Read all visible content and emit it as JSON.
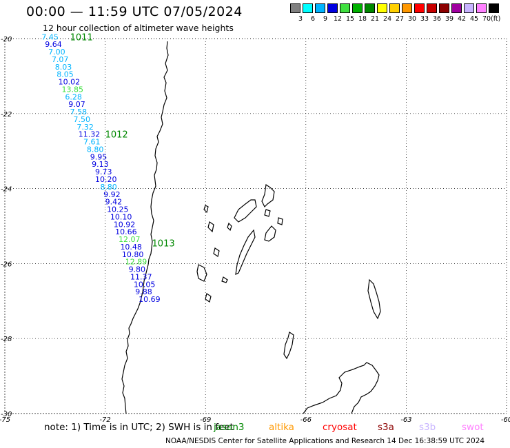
{
  "header": {
    "title": "00:00 — 11:59 UTC 07/05/2024",
    "subtitle": "12 hour collection of altimeter wave heights"
  },
  "legend": {
    "unit": "(ft)",
    "bins": [
      {
        "label": "3",
        "color": "#808080"
      },
      {
        "label": "6",
        "color": "#00ffff"
      },
      {
        "label": "9",
        "color": "#00b4ff"
      },
      {
        "label": "12",
        "color": "#0000e0"
      },
      {
        "label": "15",
        "color": "#40e040"
      },
      {
        "label": "18",
        "color": "#00b000"
      },
      {
        "label": "21",
        "color": "#008800"
      },
      {
        "label": "24",
        "color": "#ffff00"
      },
      {
        "label": "27",
        "color": "#ffd000"
      },
      {
        "label": "30",
        "color": "#ff9800"
      },
      {
        "label": "33",
        "color": "#ff0000"
      },
      {
        "label": "36",
        "color": "#c80000"
      },
      {
        "label": "39",
        "color": "#8c0000"
      },
      {
        "label": "42",
        "color": "#a000a0"
      },
      {
        "label": "45",
        "color": "#c8b4ff"
      },
      {
        "label": "70",
        "color": "#ff80ff"
      },
      {
        "label": "",
        "color": "#000000"
      }
    ]
  },
  "map": {
    "lat_labels": [
      "-20",
      "-22",
      "-24",
      "-26",
      "-28",
      "-30"
    ],
    "lon_labels": [
      "-75",
      "-72",
      "-69",
      "-66",
      "-63",
      "-60"
    ],
    "pass_labels": [
      {
        "text": "1011",
        "lon": -73.05,
        "lat": -19.95
      },
      {
        "text": "1012",
        "lon": -72.0,
        "lat": -22.55
      },
      {
        "text": "1013",
        "lon": -70.6,
        "lat": -25.45
      }
    ],
    "observations": [
      {
        "value": "7.45",
        "lon": -73.9,
        "lat": -19.95,
        "color": "#00b4ff"
      },
      {
        "value": "9.64",
        "lon": -73.8,
        "lat": -20.15,
        "color": "#0000e0"
      },
      {
        "value": "7.00",
        "lon": -73.7,
        "lat": -20.35,
        "color": "#00b4ff"
      },
      {
        "value": "7.07",
        "lon": -73.6,
        "lat": -20.55,
        "color": "#00b4ff"
      },
      {
        "value": "8.03",
        "lon": -73.5,
        "lat": -20.75,
        "color": "#00b4ff"
      },
      {
        "value": "8.05",
        "lon": -73.45,
        "lat": -20.95,
        "color": "#00b4ff"
      },
      {
        "value": "10.02",
        "lon": -73.4,
        "lat": -21.15,
        "color": "#0000e0"
      },
      {
        "value": "13.85",
        "lon": -73.3,
        "lat": -21.35,
        "color": "#40e040"
      },
      {
        "value": "6.28",
        "lon": -73.2,
        "lat": -21.55,
        "color": "#00b4ff"
      },
      {
        "value": "9.07",
        "lon": -73.1,
        "lat": -21.75,
        "color": "#0000e0"
      },
      {
        "value": "7.58",
        "lon": -73.05,
        "lat": -21.95,
        "color": "#00b4ff"
      },
      {
        "value": "7.50",
        "lon": -72.95,
        "lat": -22.15,
        "color": "#00b4ff"
      },
      {
        "value": "7.32",
        "lon": -72.85,
        "lat": -22.35,
        "color": "#00b4ff"
      },
      {
        "value": "11.32",
        "lon": -72.8,
        "lat": -22.55,
        "color": "#0000e0"
      },
      {
        "value": "7.61",
        "lon": -72.65,
        "lat": -22.75,
        "color": "#00b4ff"
      },
      {
        "value": "8.80",
        "lon": -72.55,
        "lat": -22.95,
        "color": "#00b4ff"
      },
      {
        "value": "9.95",
        "lon": -72.45,
        "lat": -23.15,
        "color": "#0000e0"
      },
      {
        "value": "9.13",
        "lon": -72.4,
        "lat": -23.35,
        "color": "#0000e0"
      },
      {
        "value": "9.73",
        "lon": -72.3,
        "lat": -23.55,
        "color": "#0000e0"
      },
      {
        "value": "10.20",
        "lon": -72.3,
        "lat": -23.75,
        "color": "#0000e0"
      },
      {
        "value": "8.80",
        "lon": -72.15,
        "lat": -23.95,
        "color": "#00b4ff"
      },
      {
        "value": "9.92",
        "lon": -72.05,
        "lat": -24.15,
        "color": "#0000e0"
      },
      {
        "value": "9.42",
        "lon": -72.0,
        "lat": -24.35,
        "color": "#0000e0"
      },
      {
        "value": "10.25",
        "lon": -71.95,
        "lat": -24.55,
        "color": "#0000e0"
      },
      {
        "value": "10.10",
        "lon": -71.85,
        "lat": -24.75,
        "color": "#0000e0"
      },
      {
        "value": "10.92",
        "lon": -71.75,
        "lat": -24.95,
        "color": "#0000e0"
      },
      {
        "value": "10.66",
        "lon": -71.7,
        "lat": -25.15,
        "color": "#0000e0"
      },
      {
        "value": "12.07",
        "lon": -71.6,
        "lat": -25.35,
        "color": "#40e040"
      },
      {
        "value": "10.48",
        "lon": -71.55,
        "lat": -25.55,
        "color": "#0000e0"
      },
      {
        "value": "10.80",
        "lon": -71.5,
        "lat": -25.75,
        "color": "#0000e0"
      },
      {
        "value": "12.89",
        "lon": -71.4,
        "lat": -25.95,
        "color": "#40e040"
      },
      {
        "value": "9.80",
        "lon": -71.3,
        "lat": -26.15,
        "color": "#0000e0"
      },
      {
        "value": "11.37",
        "lon": -71.25,
        "lat": -26.35,
        "color": "#0000e0"
      },
      {
        "value": "10.05",
        "lon": -71.15,
        "lat": -26.55,
        "color": "#0000e0"
      },
      {
        "value": "9.88",
        "lon": -71.1,
        "lat": -26.75,
        "color": "#0000e0"
      },
      {
        "value": "10.69",
        "lon": -71.0,
        "lat": -26.95,
        "color": "#0000e0"
      }
    ]
  },
  "footer": {
    "note": "note: 1) Time is in UTC; 2) SWH is in feet",
    "satellites": [
      {
        "name": "jason3",
        "color": "#008800"
      },
      {
        "name": "altika",
        "color": "#ff9800"
      },
      {
        "name": "cryosat",
        "color": "#ff0000"
      },
      {
        "name": "s3a",
        "color": "#8c0000"
      },
      {
        "name": "s3b",
        "color": "#c8b4ff"
      },
      {
        "name": "swot",
        "color": "#ff80ff"
      }
    ],
    "credit": "NOAA/NESDIS Center for Satellite Applications and Research    14 Dec 16:38:59 UTC 2024"
  }
}
